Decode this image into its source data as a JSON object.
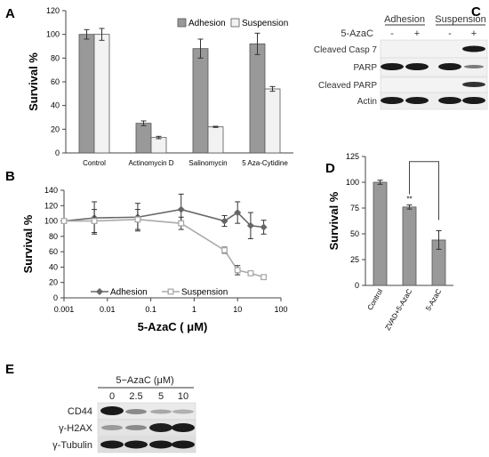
{
  "panels": {
    "a": "A",
    "b": "B",
    "c": "C",
    "d": "D",
    "e": "E"
  },
  "chart_data": [
    {
      "id": "A",
      "type": "bar",
      "ylabel": "Survival %",
      "ylim": [
        0,
        120
      ],
      "yticks": [
        0,
        20,
        40,
        60,
        80,
        100,
        120
      ],
      "categories": [
        "Control",
        "Actinomycin D",
        "Salinomycin",
        "5 Aza-Cytidine"
      ],
      "series": [
        {
          "name": "Adhesion",
          "color": "#999999",
          "values": [
            100,
            25,
            88,
            92
          ],
          "errors": [
            4,
            2,
            8,
            9
          ]
        },
        {
          "name": "Suspension",
          "color": "#f2f2f2",
          "values": [
            100,
            13,
            22,
            54
          ],
          "errors": [
            5,
            1,
            0.5,
            2
          ]
        }
      ],
      "legend": "top-right"
    },
    {
      "id": "B",
      "type": "line",
      "ylabel": "Survival %",
      "xlabel": "5-AzaC ( μM)",
      "xscale": "log",
      "xlim": [
        0.001,
        100
      ],
      "xticks": [
        "0.001",
        "0.01",
        "0.1",
        "1",
        "10",
        "100"
      ],
      "ylim": [
        0,
        140
      ],
      "yticks": [
        0,
        20,
        40,
        60,
        80,
        100,
        120,
        140
      ],
      "x": [
        0.001,
        0.005,
        0.05,
        0.5,
        5,
        10,
        20,
        40
      ],
      "series": [
        {
          "name": "Adhesion",
          "color": "#666666",
          "marker": "diamond",
          "values": [
            100,
            104,
            105,
            115,
            100,
            111,
            94,
            92
          ],
          "errors": [
            3,
            21,
            18,
            20,
            7,
            14,
            17,
            9
          ]
        },
        {
          "name": "Suspension",
          "color": "#aaaaaa",
          "marker": "square",
          "values": [
            100,
            100,
            102,
            97,
            62,
            36,
            32,
            27
          ],
          "errors": [
            3,
            15,
            13,
            8,
            4,
            6,
            2,
            2
          ]
        }
      ],
      "legend": "bottom-left"
    },
    {
      "id": "D",
      "type": "bar",
      "ylabel": "Survival %",
      "ylim": [
        0,
        125
      ],
      "yticks": [
        0,
        25,
        50,
        75,
        100,
        125
      ],
      "categories": [
        "Control",
        "ZVAD+5-AzaC",
        "5-AzaC"
      ],
      "values": [
        100,
        76,
        44
      ],
      "errors": [
        2,
        2,
        9
      ],
      "significance": "**",
      "color": "#999999"
    }
  ],
  "blot_c": {
    "treatment_label": "5-AzaC",
    "groups": [
      "Adhesion",
      "Suspension"
    ],
    "lanes": [
      "-",
      "+",
      "-",
      "+"
    ],
    "rows": [
      "Cleaved Casp 7",
      "PARP",
      "Cleaved PARP",
      "Actin"
    ]
  },
  "blot_e": {
    "header": "5−AzaC (μM)",
    "doses": [
      "0",
      "2.5",
      "5",
      "10"
    ],
    "rows": [
      "CD44",
      "γ-H2AX",
      "γ-Tubulin"
    ]
  }
}
